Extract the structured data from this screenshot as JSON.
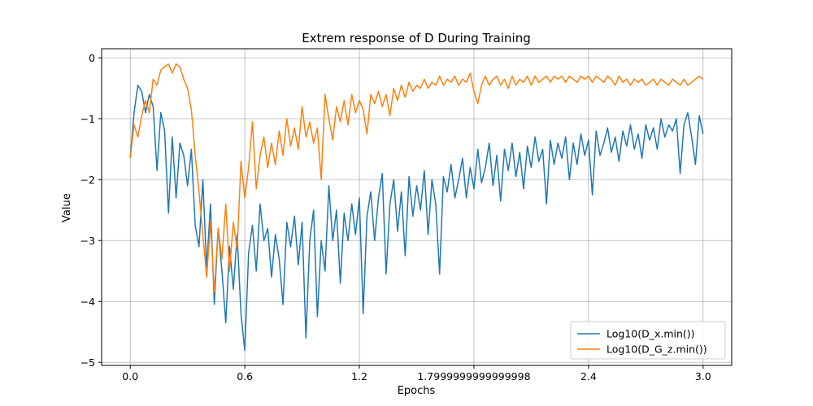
{
  "chart_data": {
    "type": "line",
    "title": "Extrem response of D During Training",
    "xlabel": "Epochs",
    "ylabel": "Value",
    "xlim": [
      -0.15,
      3.15
    ],
    "ylim": [
      -5.05,
      0.15
    ],
    "xticks": [
      0.0,
      0.6,
      1.2,
      1.8,
      2.4,
      3.0
    ],
    "xtick_labels": [
      "0.0",
      "0.6",
      "1.2",
      "1.7999999999999998",
      "2.4",
      "3.0"
    ],
    "yticks": [
      0,
      -1,
      -2,
      -3,
      -4,
      -5
    ],
    "ytick_labels": [
      "0",
      "−1",
      "−2",
      "−3",
      "−4",
      "−5"
    ],
    "grid": true,
    "legend_position": "lower-right",
    "series": [
      {
        "name": "Log10(D_x.min())",
        "color": "#1f77b4",
        "points": [
          [
            0.0,
            -1.65
          ],
          [
            0.02,
            -0.9
          ],
          [
            0.04,
            -0.45
          ],
          [
            0.06,
            -0.55
          ],
          [
            0.08,
            -0.9
          ],
          [
            0.1,
            -0.6
          ],
          [
            0.12,
            -0.8
          ],
          [
            0.14,
            -1.85
          ],
          [
            0.16,
            -0.9
          ],
          [
            0.18,
            -1.2
          ],
          [
            0.2,
            -2.55
          ],
          [
            0.22,
            -1.3
          ],
          [
            0.24,
            -2.3
          ],
          [
            0.26,
            -1.4
          ],
          [
            0.28,
            -1.6
          ],
          [
            0.3,
            -2.1
          ],
          [
            0.32,
            -1.5
          ],
          [
            0.34,
            -2.75
          ],
          [
            0.36,
            -3.1
          ],
          [
            0.38,
            -2.0
          ],
          [
            0.4,
            -3.45
          ],
          [
            0.42,
            -2.4
          ],
          [
            0.44,
            -4.05
          ],
          [
            0.46,
            -2.8
          ],
          [
            0.48,
            -3.5
          ],
          [
            0.5,
            -4.35
          ],
          [
            0.52,
            -3.1
          ],
          [
            0.54,
            -3.8
          ],
          [
            0.56,
            -2.9
          ],
          [
            0.58,
            -4.2
          ],
          [
            0.6,
            -4.8
          ],
          [
            0.62,
            -3.2
          ],
          [
            0.64,
            -2.75
          ],
          [
            0.66,
            -3.5
          ],
          [
            0.68,
            -2.4
          ],
          [
            0.7,
            -3.0
          ],
          [
            0.72,
            -2.8
          ],
          [
            0.74,
            -3.6
          ],
          [
            0.76,
            -2.9
          ],
          [
            0.78,
            -3.3
          ],
          [
            0.8,
            -4.05
          ],
          [
            0.82,
            -2.7
          ],
          [
            0.84,
            -3.1
          ],
          [
            0.86,
            -2.6
          ],
          [
            0.88,
            -3.4
          ],
          [
            0.9,
            -2.7
          ],
          [
            0.92,
            -4.6
          ],
          [
            0.94,
            -3.0
          ],
          [
            0.96,
            -2.5
          ],
          [
            0.98,
            -4.25
          ],
          [
            1.0,
            -3.0
          ],
          [
            1.02,
            -3.5
          ],
          [
            1.04,
            -2.1
          ],
          [
            1.06,
            -3.0
          ],
          [
            1.08,
            -2.5
          ],
          [
            1.1,
            -3.7
          ],
          [
            1.12,
            -2.55
          ],
          [
            1.14,
            -3.0
          ],
          [
            1.16,
            -2.4
          ],
          [
            1.18,
            -2.9
          ],
          [
            1.2,
            -2.3
          ],
          [
            1.22,
            -4.2
          ],
          [
            1.24,
            -2.6
          ],
          [
            1.26,
            -2.2
          ],
          [
            1.28,
            -3.0
          ],
          [
            1.3,
            -2.3
          ],
          [
            1.32,
            -1.9
          ],
          [
            1.34,
            -3.55
          ],
          [
            1.36,
            -2.4
          ],
          [
            1.38,
            -2.0
          ],
          [
            1.4,
            -2.85
          ],
          [
            1.42,
            -2.2
          ],
          [
            1.44,
            -3.25
          ],
          [
            1.46,
            -1.95
          ],
          [
            1.48,
            -2.6
          ],
          [
            1.5,
            -2.1
          ],
          [
            1.52,
            -2.5
          ],
          [
            1.54,
            -1.85
          ],
          [
            1.56,
            -2.9
          ],
          [
            1.58,
            -2.0
          ],
          [
            1.6,
            -2.4
          ],
          [
            1.62,
            -3.55
          ],
          [
            1.64,
            -1.95
          ],
          [
            1.66,
            -2.2
          ],
          [
            1.68,
            -1.75
          ],
          [
            1.7,
            -2.3
          ],
          [
            1.72,
            -2.0
          ],
          [
            1.74,
            -1.65
          ],
          [
            1.76,
            -2.3
          ],
          [
            1.78,
            -1.8
          ],
          [
            1.8,
            -2.15
          ],
          [
            1.82,
            -1.5
          ],
          [
            1.84,
            -2.05
          ],
          [
            1.86,
            -1.8
          ],
          [
            1.88,
            -1.4
          ],
          [
            1.9,
            -2.1
          ],
          [
            1.92,
            -1.6
          ],
          [
            1.94,
            -2.35
          ],
          [
            1.96,
            -1.5
          ],
          [
            1.98,
            -1.85
          ],
          [
            2.0,
            -1.4
          ],
          [
            2.02,
            -1.95
          ],
          [
            2.04,
            -1.55
          ],
          [
            2.06,
            -2.15
          ],
          [
            2.08,
            -1.45
          ],
          [
            2.1,
            -1.8
          ],
          [
            2.12,
            -1.3
          ],
          [
            2.14,
            -1.7
          ],
          [
            2.16,
            -1.5
          ],
          [
            2.18,
            -2.4
          ],
          [
            2.2,
            -1.35
          ],
          [
            2.22,
            -1.75
          ],
          [
            2.24,
            -1.4
          ],
          [
            2.26,
            -1.65
          ],
          [
            2.28,
            -1.3
          ],
          [
            2.3,
            -2.0
          ],
          [
            2.32,
            -1.4
          ],
          [
            2.34,
            -1.75
          ],
          [
            2.36,
            -1.25
          ],
          [
            2.38,
            -1.6
          ],
          [
            2.4,
            -1.35
          ],
          [
            2.42,
            -2.25
          ],
          [
            2.44,
            -1.2
          ],
          [
            2.46,
            -1.6
          ],
          [
            2.48,
            -1.4
          ],
          [
            2.5,
            -1.15
          ],
          [
            2.52,
            -1.55
          ],
          [
            2.54,
            -1.3
          ],
          [
            2.56,
            -1.7
          ],
          [
            2.58,
            -1.2
          ],
          [
            2.6,
            -1.45
          ],
          [
            2.62,
            -1.1
          ],
          [
            2.64,
            -1.5
          ],
          [
            2.66,
            -1.25
          ],
          [
            2.68,
            -1.65
          ],
          [
            2.7,
            -1.1
          ],
          [
            2.72,
            -1.35
          ],
          [
            2.74,
            -1.15
          ],
          [
            2.76,
            -1.5
          ],
          [
            2.78,
            -1.0
          ],
          [
            2.8,
            -1.3
          ],
          [
            2.82,
            -1.1
          ],
          [
            2.84,
            -1.2
          ],
          [
            2.86,
            -1.0
          ],
          [
            2.88,
            -1.9
          ],
          [
            2.9,
            -1.1
          ],
          [
            2.92,
            -0.9
          ],
          [
            2.94,
            -1.3
          ],
          [
            2.96,
            -1.75
          ],
          [
            2.98,
            -0.95
          ],
          [
            3.0,
            -1.25
          ]
        ]
      },
      {
        "name": "Log10(D_G_z.min())",
        "color": "#ff7f0e",
        "points": [
          [
            0.0,
            -1.65
          ],
          [
            0.02,
            -1.1
          ],
          [
            0.04,
            -1.3
          ],
          [
            0.06,
            -0.95
          ],
          [
            0.08,
            -0.7
          ],
          [
            0.1,
            -0.9
          ],
          [
            0.12,
            -0.35
          ],
          [
            0.14,
            -0.45
          ],
          [
            0.16,
            -0.2
          ],
          [
            0.18,
            -0.15
          ],
          [
            0.2,
            -0.1
          ],
          [
            0.22,
            -0.25
          ],
          [
            0.24,
            -0.1
          ],
          [
            0.26,
            -0.15
          ],
          [
            0.28,
            -0.35
          ],
          [
            0.3,
            -0.5
          ],
          [
            0.32,
            -0.85
          ],
          [
            0.34,
            -1.6
          ],
          [
            0.36,
            -2.2
          ],
          [
            0.38,
            -2.9
          ],
          [
            0.4,
            -3.6
          ],
          [
            0.42,
            -2.7
          ],
          [
            0.44,
            -3.85
          ],
          [
            0.46,
            -2.8
          ],
          [
            0.48,
            -3.3
          ],
          [
            0.5,
            -2.4
          ],
          [
            0.52,
            -3.5
          ],
          [
            0.54,
            -2.7
          ],
          [
            0.56,
            -3.15
          ],
          [
            0.58,
            -1.7
          ],
          [
            0.6,
            -2.3
          ],
          [
            0.62,
            -1.8
          ],
          [
            0.64,
            -1.05
          ],
          [
            0.66,
            -2.15
          ],
          [
            0.68,
            -1.6
          ],
          [
            0.7,
            -1.3
          ],
          [
            0.72,
            -1.8
          ],
          [
            0.74,
            -1.4
          ],
          [
            0.76,
            -1.75
          ],
          [
            0.78,
            -1.2
          ],
          [
            0.8,
            -1.6
          ],
          [
            0.82,
            -1.0
          ],
          [
            0.84,
            -1.45
          ],
          [
            0.86,
            -1.15
          ],
          [
            0.88,
            -1.5
          ],
          [
            0.9,
            -0.8
          ],
          [
            0.92,
            -1.3
          ],
          [
            0.94,
            -1.05
          ],
          [
            0.96,
            -1.4
          ],
          [
            0.98,
            -1.15
          ],
          [
            1.0,
            -2.0
          ],
          [
            1.02,
            -0.6
          ],
          [
            1.04,
            -1.0
          ],
          [
            1.06,
            -1.35
          ],
          [
            1.08,
            -0.8
          ],
          [
            1.1,
            -1.05
          ],
          [
            1.12,
            -0.7
          ],
          [
            1.14,
            -1.1
          ],
          [
            1.16,
            -0.6
          ],
          [
            1.18,
            -0.9
          ],
          [
            1.2,
            -0.7
          ],
          [
            1.22,
            -0.85
          ],
          [
            1.24,
            -1.25
          ],
          [
            1.26,
            -0.6
          ],
          [
            1.28,
            -0.75
          ],
          [
            1.3,
            -0.55
          ],
          [
            1.32,
            -0.8
          ],
          [
            1.34,
            -0.6
          ],
          [
            1.36,
            -0.95
          ],
          [
            1.38,
            -0.5
          ],
          [
            1.4,
            -0.7
          ],
          [
            1.42,
            -0.45
          ],
          [
            1.44,
            -0.65
          ],
          [
            1.46,
            -0.4
          ],
          [
            1.48,
            -0.55
          ],
          [
            1.5,
            -0.45
          ],
          [
            1.52,
            -0.5
          ],
          [
            1.54,
            -0.35
          ],
          [
            1.56,
            -0.5
          ],
          [
            1.58,
            -0.4
          ],
          [
            1.6,
            -0.45
          ],
          [
            1.62,
            -0.3
          ],
          [
            1.64,
            -0.45
          ],
          [
            1.66,
            -0.35
          ],
          [
            1.68,
            -0.4
          ],
          [
            1.7,
            -0.3
          ],
          [
            1.72,
            -0.45
          ],
          [
            1.74,
            -0.35
          ],
          [
            1.76,
            -0.4
          ],
          [
            1.78,
            -0.25
          ],
          [
            1.8,
            -0.55
          ],
          [
            1.82,
            -0.75
          ],
          [
            1.84,
            -0.45
          ],
          [
            1.86,
            -0.3
          ],
          [
            1.88,
            -0.45
          ],
          [
            1.9,
            -0.35
          ],
          [
            1.92,
            -0.3
          ],
          [
            1.94,
            -0.45
          ],
          [
            1.96,
            -0.35
          ],
          [
            1.98,
            -0.5
          ],
          [
            2.0,
            -0.3
          ],
          [
            2.02,
            -0.45
          ],
          [
            2.04,
            -0.35
          ],
          [
            2.06,
            -0.4
          ],
          [
            2.08,
            -0.3
          ],
          [
            2.1,
            -0.45
          ],
          [
            2.12,
            -0.3
          ],
          [
            2.14,
            -0.4
          ],
          [
            2.16,
            -0.35
          ],
          [
            2.18,
            -0.3
          ],
          [
            2.2,
            -0.4
          ],
          [
            2.22,
            -0.3
          ],
          [
            2.24,
            -0.35
          ],
          [
            2.26,
            -0.3
          ],
          [
            2.28,
            -0.4
          ],
          [
            2.3,
            -0.3
          ],
          [
            2.32,
            -0.35
          ],
          [
            2.34,
            -0.4
          ],
          [
            2.36,
            -0.3
          ],
          [
            2.38,
            -0.35
          ],
          [
            2.4,
            -0.3
          ],
          [
            2.42,
            -0.4
          ],
          [
            2.44,
            -0.3
          ],
          [
            2.46,
            -0.35
          ],
          [
            2.48,
            -0.4
          ],
          [
            2.5,
            -0.3
          ],
          [
            2.52,
            -0.35
          ],
          [
            2.54,
            -0.45
          ],
          [
            2.56,
            -0.3
          ],
          [
            2.58,
            -0.4
          ],
          [
            2.6,
            -0.35
          ],
          [
            2.62,
            -0.45
          ],
          [
            2.64,
            -0.35
          ],
          [
            2.66,
            -0.4
          ],
          [
            2.68,
            -0.35
          ],
          [
            2.7,
            -0.45
          ],
          [
            2.72,
            -0.4
          ],
          [
            2.74,
            -0.35
          ],
          [
            2.76,
            -0.45
          ],
          [
            2.78,
            -0.35
          ],
          [
            2.8,
            -0.4
          ],
          [
            2.82,
            -0.45
          ],
          [
            2.84,
            -0.35
          ],
          [
            2.86,
            -0.4
          ],
          [
            2.88,
            -0.45
          ],
          [
            2.9,
            -0.35
          ],
          [
            2.92,
            -0.45
          ],
          [
            2.94,
            -0.4
          ],
          [
            2.96,
            -0.35
          ],
          [
            2.98,
            -0.3
          ],
          [
            3.0,
            -0.35
          ]
        ]
      }
    ]
  }
}
